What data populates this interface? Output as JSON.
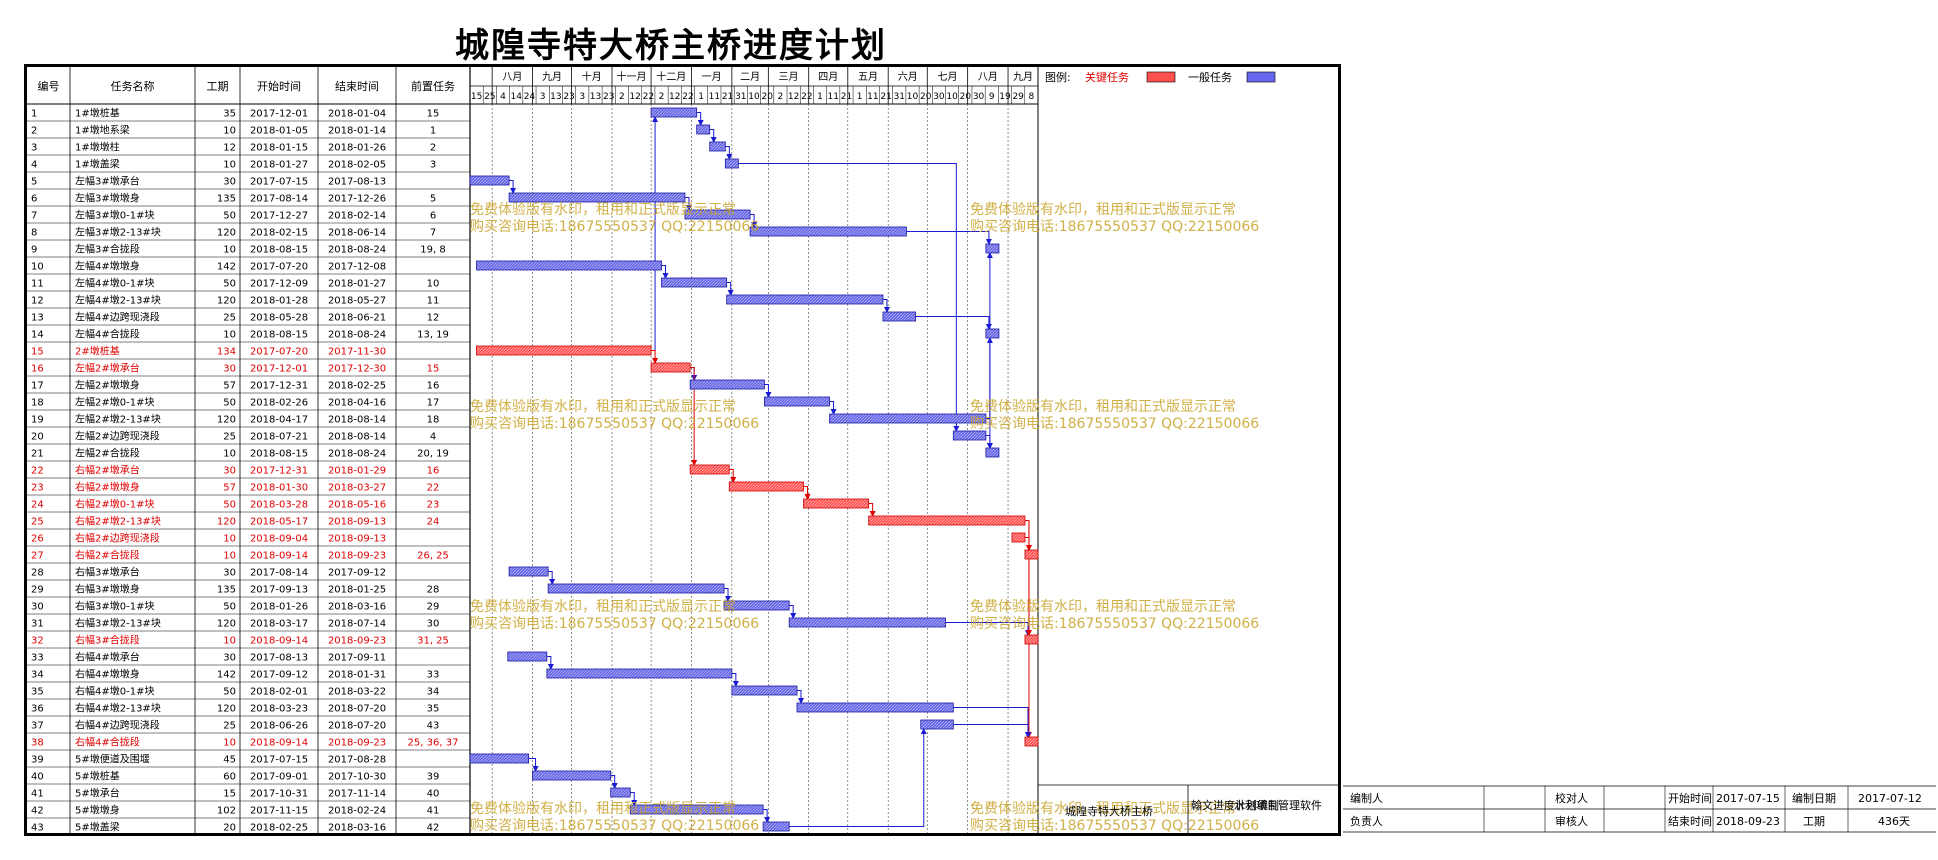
{
  "title": "城隍寺特大桥主桥进度计划",
  "table": {
    "headers": [
      "编号",
      "任务名称",
      "工期",
      "开始时间",
      "结束时间",
      "前置任务"
    ]
  },
  "legend": {
    "label": "图例:",
    "critical_label": "关键任务",
    "normal_label": "一般任务",
    "critical_color": "#ff5050",
    "normal_color": "#6666ee"
  },
  "timescale": {
    "months": [
      "八月",
      "九月",
      "十月",
      "十一月",
      "十二月",
      "一月",
      "二月",
      "三月",
      "四月",
      "五月",
      "六月",
      "七月",
      "八月",
      "九月"
    ],
    "days": [
      "15",
      "25",
      "4",
      "14",
      "24",
      "3",
      "13",
      "23",
      "3",
      "13",
      "23",
      "2",
      "12",
      "22",
      "2",
      "12",
      "22",
      "1",
      "11",
      "21",
      "31",
      "10",
      "20",
      "2",
      "12",
      "22",
      "1",
      "11",
      "21",
      "1",
      "11",
      "21",
      "31",
      "10",
      "20",
      "30",
      "10",
      "20",
      "30",
      "9",
      "19",
      "29",
      "8"
    ]
  },
  "chart_data": {
    "type": "table",
    "axis_start": "2017-07-15",
    "axis_end": "2018-09-23",
    "tasks": [
      {
        "id": "1",
        "name": "1#墩桩基",
        "duration": "35",
        "start": "2017-12-01",
        "end": "2018-01-04",
        "pred": "15",
        "critical": false
      },
      {
        "id": "2",
        "name": "1#墩地系梁",
        "duration": "10",
        "start": "2018-01-05",
        "end": "2018-01-14",
        "pred": "1",
        "critical": false
      },
      {
        "id": "3",
        "name": "1#墩墩柱",
        "duration": "12",
        "start": "2018-01-15",
        "end": "2018-01-26",
        "pred": "2",
        "critical": false
      },
      {
        "id": "4",
        "name": "1#墩盖梁",
        "duration": "10",
        "start": "2018-01-27",
        "end": "2018-02-05",
        "pred": "3",
        "critical": false
      },
      {
        "id": "5",
        "name": "左幅3#墩承台",
        "duration": "30",
        "start": "2017-07-15",
        "end": "2017-08-13",
        "pred": "",
        "critical": false
      },
      {
        "id": "6",
        "name": "左幅3#墩墩身",
        "duration": "135",
        "start": "2017-08-14",
        "end": "2017-12-26",
        "pred": "5",
        "critical": false
      },
      {
        "id": "7",
        "name": "左幅3#墩0-1#块",
        "duration": "50",
        "start": "2017-12-27",
        "end": "2018-02-14",
        "pred": "6",
        "critical": false
      },
      {
        "id": "8",
        "name": "左幅3#墩2-13#块",
        "duration": "120",
        "start": "2018-02-15",
        "end": "2018-06-14",
        "pred": "7",
        "critical": false
      },
      {
        "id": "9",
        "name": "左幅3#合拢段",
        "duration": "10",
        "start": "2018-08-15",
        "end": "2018-08-24",
        "pred": "19, 8",
        "critical": false
      },
      {
        "id": "10",
        "name": "左幅4#墩墩身",
        "duration": "142",
        "start": "2017-07-20",
        "end": "2017-12-08",
        "pred": "",
        "critical": false
      },
      {
        "id": "11",
        "name": "左幅4#墩0-1#块",
        "duration": "50",
        "start": "2017-12-09",
        "end": "2018-01-27",
        "pred": "10",
        "critical": false
      },
      {
        "id": "12",
        "name": "左幅4#墩2-13#块",
        "duration": "120",
        "start": "2018-01-28",
        "end": "2018-05-27",
        "pred": "11",
        "critical": false
      },
      {
        "id": "13",
        "name": "左幅4#边跨现浇段",
        "duration": "25",
        "start": "2018-05-28",
        "end": "2018-06-21",
        "pred": "12",
        "critical": false
      },
      {
        "id": "14",
        "name": "左幅4#合拢段",
        "duration": "10",
        "start": "2018-08-15",
        "end": "2018-08-24",
        "pred": "13, 19",
        "critical": false
      },
      {
        "id": "15",
        "name": "2#墩桩基",
        "duration": "134",
        "start": "2017-07-20",
        "end": "2017-11-30",
        "pred": "",
        "critical": true
      },
      {
        "id": "16",
        "name": "左幅2#墩承台",
        "duration": "30",
        "start": "2017-12-01",
        "end": "2017-12-30",
        "pred": "15",
        "critical": true
      },
      {
        "id": "17",
        "name": "左幅2#墩墩身",
        "duration": "57",
        "start": "2017-12-31",
        "end": "2018-02-25",
        "pred": "16",
        "critical": false
      },
      {
        "id": "18",
        "name": "左幅2#墩0-1#块",
        "duration": "50",
        "start": "2018-02-26",
        "end": "2018-04-16",
        "pred": "17",
        "critical": false
      },
      {
        "id": "19",
        "name": "左幅2#墩2-13#块",
        "duration": "120",
        "start": "2018-04-17",
        "end": "2018-08-14",
        "pred": "18",
        "critical": false
      },
      {
        "id": "20",
        "name": "左幅2#边跨现浇段",
        "duration": "25",
        "start": "2018-07-21",
        "end": "2018-08-14",
        "pred": "4",
        "critical": false
      },
      {
        "id": "21",
        "name": "左幅2#合拢段",
        "duration": "10",
        "start": "2018-08-15",
        "end": "2018-08-24",
        "pred": "20, 19",
        "critical": false
      },
      {
        "id": "22",
        "name": "右幅2#墩承台",
        "duration": "30",
        "start": "2017-12-31",
        "end": "2018-01-29",
        "pred": "16",
        "critical": true
      },
      {
        "id": "23",
        "name": "右幅2#墩墩身",
        "duration": "57",
        "start": "2018-01-30",
        "end": "2018-03-27",
        "pred": "22",
        "critical": true
      },
      {
        "id": "24",
        "name": "右幅2#墩0-1#块",
        "duration": "50",
        "start": "2018-03-28",
        "end": "2018-05-16",
        "pred": "23",
        "critical": true
      },
      {
        "id": "25",
        "name": "右幅2#墩2-13#块",
        "duration": "120",
        "start": "2018-05-17",
        "end": "2018-09-13",
        "pred": "24",
        "critical": true
      },
      {
        "id": "26",
        "name": "右幅2#边跨现浇段",
        "duration": "10",
        "start": "2018-09-04",
        "end": "2018-09-13",
        "pred": "",
        "critical": true
      },
      {
        "id": "27",
        "name": "右幅2#合拢段",
        "duration": "10",
        "start": "2018-09-14",
        "end": "2018-09-23",
        "pred": "26, 25",
        "critical": true
      },
      {
        "id": "28",
        "name": "右幅3#墩承台",
        "duration": "30",
        "start": "2017-08-14",
        "end": "2017-09-12",
        "pred": "",
        "critical": false
      },
      {
        "id": "29",
        "name": "右幅3#墩墩身",
        "duration": "135",
        "start": "2017-09-13",
        "end": "2018-01-25",
        "pred": "28",
        "critical": false
      },
      {
        "id": "30",
        "name": "右幅3#墩0-1#块",
        "duration": "50",
        "start": "2018-01-26",
        "end": "2018-03-16",
        "pred": "29",
        "critical": false
      },
      {
        "id": "31",
        "name": "右幅3#墩2-13#块",
        "duration": "120",
        "start": "2018-03-17",
        "end": "2018-07-14",
        "pred": "30",
        "critical": false
      },
      {
        "id": "32",
        "name": "右幅3#合拢段",
        "duration": "10",
        "start": "2018-09-14",
        "end": "2018-09-23",
        "pred": "31, 25",
        "critical": true
      },
      {
        "id": "33",
        "name": "右幅4#墩承台",
        "duration": "30",
        "start": "2017-08-13",
        "end": "2017-09-11",
        "pred": "",
        "critical": false
      },
      {
        "id": "34",
        "name": "右幅4#墩墩身",
        "duration": "142",
        "start": "2017-09-12",
        "end": "2018-01-31",
        "pred": "33",
        "critical": false
      },
      {
        "id": "35",
        "name": "右幅4#墩0-1#块",
        "duration": "50",
        "start": "2018-02-01",
        "end": "2018-03-22",
        "pred": "34",
        "critical": false
      },
      {
        "id": "36",
        "name": "右幅4#墩2-13#块",
        "duration": "120",
        "start": "2018-03-23",
        "end": "2018-07-20",
        "pred": "35",
        "critical": false
      },
      {
        "id": "37",
        "name": "右幅4#边跨现浇段",
        "duration": "25",
        "start": "2018-06-26",
        "end": "2018-07-20",
        "pred": "43",
        "critical": false
      },
      {
        "id": "38",
        "name": "右幅4#合拢段",
        "duration": "10",
        "start": "2018-09-14",
        "end": "2018-09-23",
        "pred": "25, 36, 37",
        "critical": true
      },
      {
        "id": "39",
        "name": "5#墩便道及围堰",
        "duration": "45",
        "start": "2017-07-15",
        "end": "2017-08-28",
        "pred": "",
        "critical": false
      },
      {
        "id": "40",
        "name": "5#墩桩基",
        "duration": "60",
        "start": "2017-09-01",
        "end": "2017-10-30",
        "pred": "39",
        "critical": false
      },
      {
        "id": "41",
        "name": "5#墩承台",
        "duration": "15",
        "start": "2017-10-31",
        "end": "2017-11-14",
        "pred": "40",
        "critical": false
      },
      {
        "id": "42",
        "name": "5#墩墩身",
        "duration": "102",
        "start": "2017-11-15",
        "end": "2018-02-24",
        "pred": "41",
        "critical": false
      },
      {
        "id": "43",
        "name": "5#墩盖梁",
        "duration": "20",
        "start": "2018-02-25",
        "end": "2018-03-16",
        "pred": "42",
        "critical": false
      }
    ]
  },
  "watermark": {
    "line1": "免费体验版有水印，租用和正式版显示正常",
    "line2": "购买咨询电话:18675550537 QQ:22150066",
    "color": "#c9a227"
  },
  "footer": {
    "project_name": "城隍寺特大桥主桥",
    "software_name": "翰文进度计划编制",
    "software_suffix": "水利项目管理软件",
    "compiler_label": "编制人",
    "compiler_value": "",
    "proofreader_label": "校对人",
    "proofreader_value": "",
    "start_label": "开始时间",
    "start_value": "2017-07-15",
    "made_date_label": "编制日期",
    "made_date_value": "2017-07-12",
    "owner_label": "负责人",
    "owner_value": "",
    "reviewer_label": "审核人",
    "reviewer_value": "",
    "end_label": "结束时间",
    "end_value": "2018-09-23",
    "duration_label": "工期",
    "duration_value": "436天"
  }
}
